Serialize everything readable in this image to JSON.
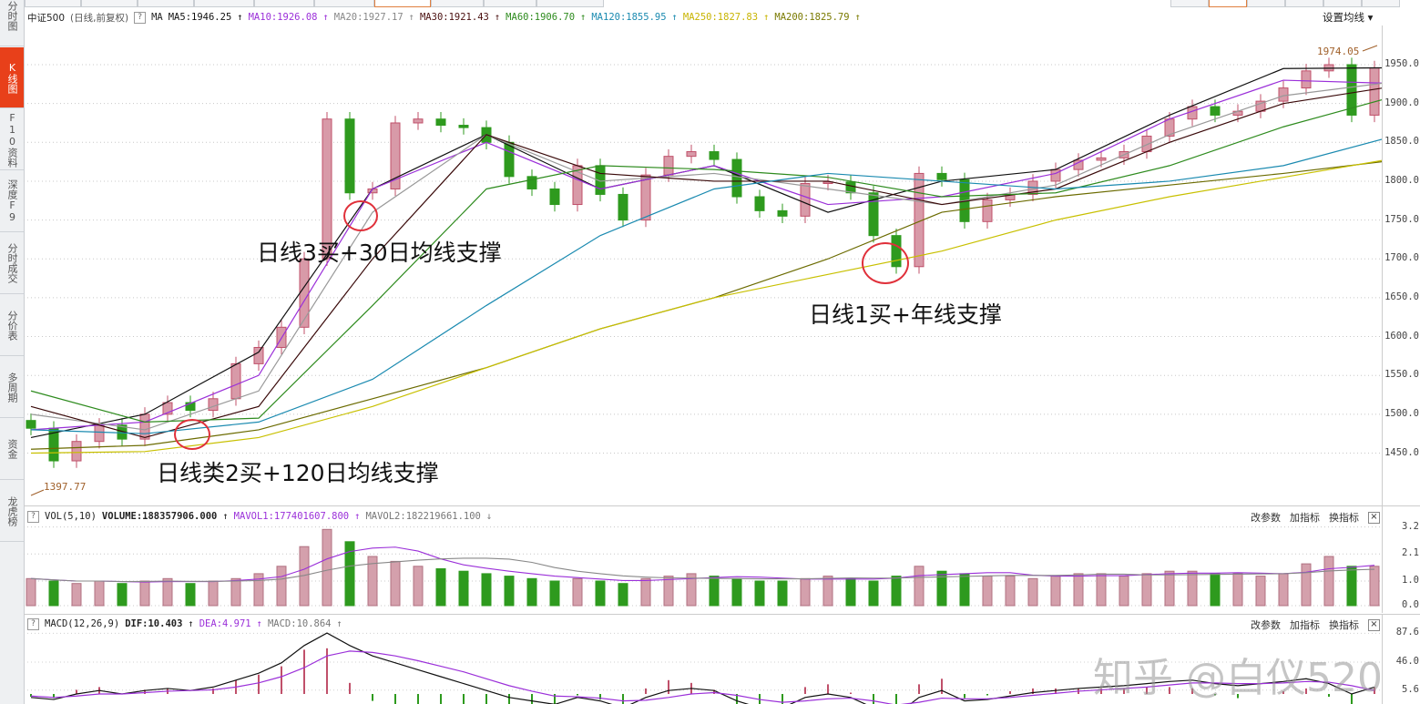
{
  "sidebar": {
    "items": [
      {
        "label": "分时图",
        "active": false
      },
      {
        "label": "K线图",
        "active": true
      },
      {
        "label": "F10资料",
        "active": false
      },
      {
        "label": "深度F9",
        "active": false
      },
      {
        "label": "分时成交",
        "active": false
      },
      {
        "label": "分价表",
        "active": false
      },
      {
        "label": "多周期",
        "active": false
      },
      {
        "label": "资金",
        "active": false
      },
      {
        "label": "龙虎榜",
        "active": false
      }
    ]
  },
  "price_header": {
    "symbol": "中证500",
    "mode": "(日线,前复权)",
    "help": "?",
    "ma_label": "MA",
    "ma_values": [
      {
        "text": "MA5:1946.25",
        "arrow": "↑",
        "color": "#111111"
      },
      {
        "text": "MA10:1926.08",
        "arrow": "↑",
        "color": "#9b30d9"
      },
      {
        "text": "MA20:1927.17",
        "arrow": "↑",
        "color": "#888888"
      },
      {
        "text": "MA30:1921.43",
        "arrow": "↑",
        "color": "#4a1010"
      },
      {
        "text": "MA60:1906.70",
        "arrow": "↑",
        "color": "#2e8b1e"
      },
      {
        "text": "MA120:1855.95",
        "arrow": "↑",
        "color": "#1a8ab0"
      },
      {
        "text": "MA250:1827.83",
        "arrow": "↑",
        "color": "#c8b400"
      },
      {
        "text": "MA200:1825.79",
        "arrow": "↑",
        "color": "#7a7a00"
      }
    ],
    "settings": "设置均线 ▾"
  },
  "volume_header": {
    "help": "?",
    "name": "VOL(5,10)",
    "volume": "VOLUME:188357906.000",
    "volume_arrow": "↑",
    "mavol1": "MAVOL1:177401607.800",
    "mavol1_arrow": "↑",
    "mavol2": "MAVOL2:182219661.100",
    "mavol2_arrow": "↓"
  },
  "macd_header": {
    "help": "?",
    "name": "MACD(12,26,9)",
    "dif": "DIF:10.403",
    "dif_arrow": "↑",
    "dea": "DEA:4.971",
    "dea_arrow": "↑",
    "macd": "MACD:10.864",
    "macd_arrow": "↑"
  },
  "panel_actions": {
    "change_params": "改参数",
    "add_indicator": "加指标",
    "switch_indicator": "换指标",
    "close": "×"
  },
  "annotations": {
    "a1": "日线3买+30日均线支撑",
    "a2": "日线1买+年线支撑",
    "a3": "日线类2买+120日均线支撑"
  },
  "watermark": "知乎 @白仪520",
  "colors": {
    "up": "#c77a8a",
    "down": "#2e9a1e",
    "accent": "#e8401a",
    "annotation_circle": "#e0303a"
  },
  "chart_data": [
    {
      "type": "candlestick",
      "title": "中证500 (日线,前复权)",
      "y_ticks": [
        1450,
        1500,
        1550,
        1600,
        1650,
        1700,
        1750,
        1800,
        1850,
        1900,
        1950
      ],
      "y_tick_labels": [
        "1450.0",
        "1500.0",
        "1550.0",
        "1600.0",
        "1650.0",
        "1700.0",
        "1750.0",
        "1800.0",
        "1850.0",
        "1900.0",
        "1950.0"
      ],
      "ylim": [
        1390,
        1985
      ],
      "grid": true,
      "high_label": "1974.05",
      "low_label": "1397.77",
      "close": [
        1482,
        1440,
        1465,
        1486,
        1468,
        1500,
        1515,
        1505,
        1520,
        1565,
        1586,
        1612,
        1700,
        1880,
        1785,
        1790,
        1875,
        1880,
        1872,
        1869,
        1850,
        1806,
        1790,
        1770,
        1820,
        1783,
        1750,
        1808,
        1832,
        1838,
        1828,
        1780,
        1762,
        1755,
        1797,
        1799,
        1785,
        1730,
        1690,
        1810,
        1802,
        1748,
        1776,
        1783,
        1800,
        1815,
        1827,
        1830,
        1838,
        1858,
        1880,
        1896,
        1885,
        1890,
        1903,
        1920,
        1942,
        1950,
        1885,
        1946
      ],
      "ma_series_step": 5,
      "ma_series": [
        {
          "name": "MA5",
          "color": "#111111",
          "values": [
            1470,
            1500,
            1580,
            1790,
            1860,
            1790,
            1820,
            1760,
            1800,
            1815,
            1885,
            1945,
            1946
          ]
        },
        {
          "name": "MA10",
          "color": "#9b30d9",
          "values": [
            1480,
            1490,
            1550,
            1790,
            1850,
            1790,
            1820,
            1770,
            1780,
            1810,
            1880,
            1930,
            1926
          ]
        },
        {
          "name": "MA20",
          "color": "#999999",
          "values": [
            1500,
            1480,
            1530,
            1760,
            1860,
            1800,
            1810,
            1790,
            1770,
            1795,
            1860,
            1910,
            1927
          ]
        },
        {
          "name": "MA30",
          "color": "#3a0a0a",
          "values": [
            1510,
            1470,
            1510,
            1700,
            1860,
            1810,
            1800,
            1800,
            1770,
            1790,
            1850,
            1900,
            1921
          ]
        },
        {
          "name": "MA60",
          "color": "#2e8b1e",
          "values": [
            1530,
            1490,
            1495,
            1640,
            1790,
            1820,
            1815,
            1805,
            1780,
            1785,
            1820,
            1870,
            1907
          ]
        },
        {
          "name": "MA120",
          "color": "#1a8ab0",
          "values": [
            1480,
            1475,
            1490,
            1545,
            1640,
            1730,
            1790,
            1810,
            1800,
            1790,
            1800,
            1820,
            1856
          ]
        },
        {
          "name": "MA200",
          "color": "#6b6b00",
          "values": [
            1455,
            1460,
            1480,
            1520,
            1560,
            1610,
            1650,
            1700,
            1760,
            1780,
            1795,
            1810,
            1826
          ]
        },
        {
          "name": "MA250",
          "color": "#c8c000",
          "values": [
            1450,
            1452,
            1470,
            1510,
            1560,
            1610,
            1650,
            1680,
            1710,
            1750,
            1780,
            1805,
            1828
          ]
        }
      ]
    },
    {
      "type": "bar",
      "title": "VOL(5,10)",
      "y_ticks": [
        0.0,
        1.0,
        2.1,
        3.2
      ],
      "y_tick_labels": [
        "0.0",
        "1.0",
        "2.1",
        "3.2"
      ],
      "ylim": [
        0,
        3.3
      ],
      "values": [
        1.1,
        1.0,
        0.9,
        1.0,
        0.9,
        1.0,
        1.1,
        0.9,
        1.0,
        1.1,
        1.3,
        1.6,
        2.4,
        3.1,
        2.6,
        2.0,
        1.8,
        1.6,
        1.5,
        1.4,
        1.3,
        1.2,
        1.1,
        1.0,
        1.1,
        1.0,
        0.9,
        1.1,
        1.2,
        1.3,
        1.2,
        1.1,
        1.0,
        1.0,
        1.1,
        1.2,
        1.1,
        1.0,
        1.2,
        1.6,
        1.4,
        1.3,
        1.2,
        1.2,
        1.1,
        1.2,
        1.3,
        1.3,
        1.2,
        1.3,
        1.4,
        1.4,
        1.3,
        1.3,
        1.2,
        1.3,
        1.7,
        2.0,
        1.6,
        1.6
      ]
    },
    {
      "type": "line",
      "title": "MACD(12,26,9)",
      "y_ticks": [
        5.6,
        46.0,
        87.6
      ],
      "y_tick_labels": [
        "5.6",
        "46.0",
        "87.6"
      ],
      "dif": [
        -5,
        -8,
        0,
        5,
        0,
        5,
        8,
        5,
        10,
        20,
        30,
        45,
        70,
        88,
        70,
        55,
        45,
        35,
        25,
        15,
        5,
        -5,
        -10,
        -15,
        -5,
        -10,
        -20,
        -5,
        5,
        8,
        5,
        -10,
        -20,
        -20,
        -5,
        0,
        -5,
        -20,
        -30,
        -5,
        5,
        -10,
        -8,
        -3,
        2,
        5,
        8,
        10,
        12,
        15,
        18,
        20,
        15,
        12,
        15,
        18,
        22,
        15,
        0,
        10
      ],
      "dea": [
        -3,
        -5,
        -3,
        0,
        0,
        2,
        4,
        5,
        6,
        10,
        16,
        25,
        38,
        55,
        62,
        60,
        55,
        48,
        40,
        32,
        22,
        12,
        4,
        -3,
        -4,
        -6,
        -10,
        -9,
        -5,
        0,
        2,
        -2,
        -8,
        -12,
        -10,
        -7,
        -6,
        -10,
        -16,
        -12,
        -6,
        -7,
        -7,
        -5,
        -2,
        1,
        4,
        6,
        8,
        10,
        13,
        16,
        16,
        15,
        15,
        16,
        18,
        17,
        12,
        5
      ]
    }
  ]
}
